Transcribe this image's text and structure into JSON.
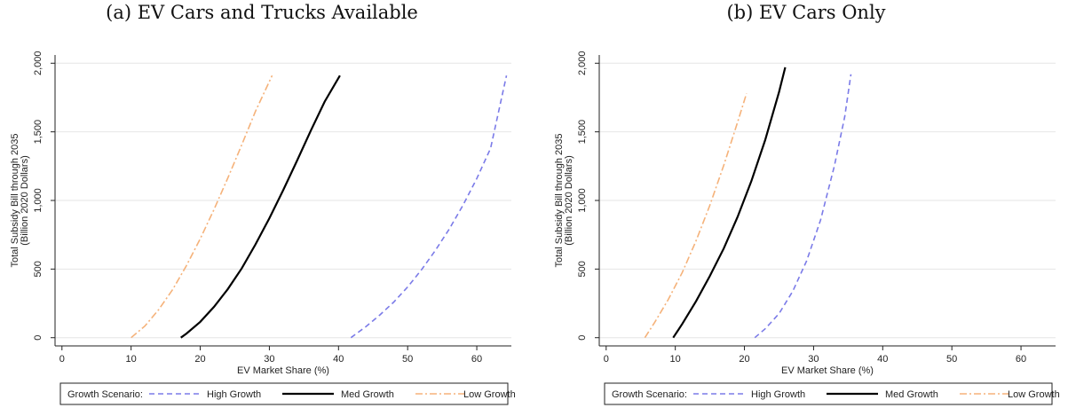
{
  "chart_data": [
    {
      "type": "line",
      "title": "(a) EV Cars and Trucks Available",
      "xlabel": "EV Market Share (%)",
      "ylabel_line1": "Total Subsidy Bill through 2035",
      "ylabel_line2": "(Billion 2020 Dollars)",
      "xlim": [
        -1,
        65
      ],
      "ylim": [
        -60,
        2060
      ],
      "xticks": [
        0,
        10,
        20,
        30,
        40,
        50,
        60
      ],
      "xtick_labels": [
        "0",
        "10",
        "20",
        "30",
        "40",
        "50",
        "60"
      ],
      "yticks": [
        0,
        500,
        1000,
        1500,
        2000
      ],
      "ytick_labels": [
        "0",
        "500",
        "1,000",
        "1,500",
        "2,000"
      ],
      "grid": true,
      "legend_title": "Growth Scenario:",
      "legend_position": "bottom",
      "series": [
        {
          "name": "High Growth",
          "color": "#7b7be8",
          "dash": "dashed",
          "x": [
            41.8,
            44,
            46,
            48,
            50,
            52,
            54,
            56,
            58,
            60,
            62,
            64.3
          ],
          "y": [
            0,
            82,
            166,
            260,
            370,
            495,
            635,
            790,
            965,
            1160,
            1380,
            1910
          ]
        },
        {
          "name": "Med Growth",
          "color": "#000000",
          "dash": "solid",
          "x": [
            17.2,
            18,
            20,
            22,
            24,
            26,
            28,
            30,
            32,
            34,
            36,
            38,
            40.2
          ],
          "y": [
            0,
            30,
            115,
            225,
            355,
            505,
            680,
            870,
            1075,
            1290,
            1510,
            1720,
            1910
          ]
        },
        {
          "name": "Low Growth",
          "color": "#f5b27a",
          "dash": "dashdot",
          "x": [
            10.0,
            12,
            14,
            16,
            18,
            20,
            22,
            24,
            26,
            28,
            30.4
          ],
          "y": [
            0,
            85,
            205,
            350,
            525,
            720,
            935,
            1165,
            1405,
            1650,
            1910
          ]
        }
      ]
    },
    {
      "type": "line",
      "title": "(b) EV Cars Only",
      "xlabel": "EV Market Share (%)",
      "ylabel_line1": "Total Subsidy Bill through 2035",
      "ylabel_line2": "(Billion 2020 Dollars)",
      "xlim": [
        -1,
        65
      ],
      "ylim": [
        -60,
        2060
      ],
      "xticks": [
        0,
        10,
        20,
        30,
        40,
        50,
        60
      ],
      "xtick_labels": [
        "0",
        "10",
        "20",
        "30",
        "40",
        "50",
        "60"
      ],
      "yticks": [
        0,
        500,
        1000,
        1500,
        2000
      ],
      "ytick_labels": [
        "0",
        "500",
        "1,000",
        "1,500",
        "2,000"
      ],
      "grid": true,
      "legend_title": "Growth Scenario:",
      "legend_position": "bottom",
      "series": [
        {
          "name": "High Growth",
          "color": "#7b7be8",
          "dash": "dashed",
          "x": [
            21.5,
            23,
            25,
            27,
            29,
            31,
            33,
            34.5,
            35.4
          ],
          "y": [
            0,
            65,
            175,
            340,
            560,
            855,
            1250,
            1610,
            1920
          ]
        },
        {
          "name": "Med Growth",
          "color": "#000000",
          "dash": "solid",
          "x": [
            9.7,
            11,
            13,
            15,
            17,
            19,
            21,
            23,
            25,
            25.9
          ],
          "y": [
            0,
            100,
            265,
            450,
            650,
            880,
            1140,
            1440,
            1790,
            1970
          ]
        },
        {
          "name": "Low Growth",
          "color": "#f5b27a",
          "dash": "dashdot",
          "x": [
            5.6,
            7,
            9,
            11,
            13,
            15,
            17,
            19,
            20.3
          ],
          "y": [
            0,
            110,
            280,
            475,
            705,
            965,
            1255,
            1570,
            1780
          ]
        }
      ]
    }
  ]
}
